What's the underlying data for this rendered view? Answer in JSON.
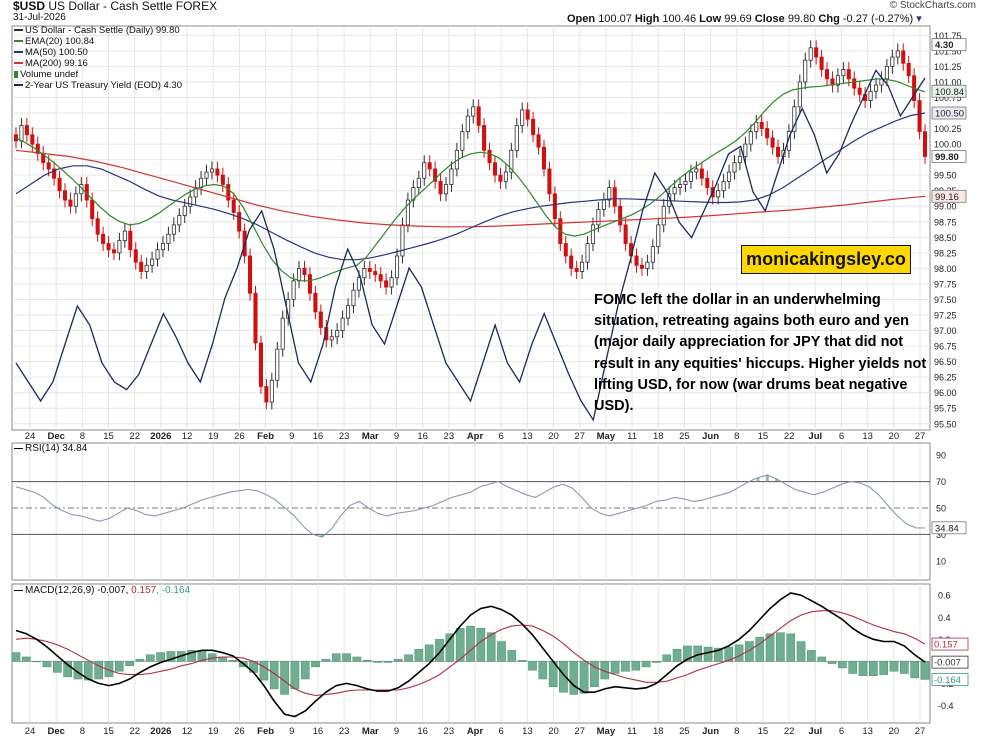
{
  "header": {
    "symbol": "$USD",
    "name": "US Dollar - Cash Settle",
    "exchange": "FOREX",
    "date": "31-Jul-2026",
    "source": "© StockCharts.com",
    "ohlc": {
      "open_label": "Open",
      "open": "100.07",
      "high_label": "High",
      "high": "100.46",
      "low_label": "Low",
      "low": "99.69",
      "close_label": "Close",
      "close": "99.80",
      "chg_label": "Chg",
      "chg": "-0.27 (-0.27%)"
    }
  },
  "legend": {
    "line1": "US Dollar - Cash Settle (Daily) 99.80",
    "line2": "EMA(20) 100.84",
    "line3": "MA(50) 100.50",
    "line4": "MA(200) 99.16",
    "line5": "Volume undef",
    "line6": "2-Year US Treasury Yield (EOD) 4.30"
  },
  "colors": {
    "up": "#2e2e2e",
    "down": "#d01010",
    "ema20": "#2a8a2a",
    "ma50": "#2a3580",
    "ma200": "#d23434",
    "yield": "#1a2a5a",
    "macd": "#000000",
    "signal": "#b03040",
    "hist": "#6fae90",
    "grid": "#e6e6e6",
    "frame": "#888888"
  },
  "watermark": "monicakingsley.co",
  "annotation": "FOMC left the dollar in an underwhelming situation, retreating agains both euro and yen (major daily appreciation for JPY that did not result in any equities' hiccups. Higher yields not lifting USD, for now (war drums beat negative USD).",
  "rsi_label": "RSI(14) 34.84",
  "macd_label": {
    "text": "MACD(12,26,9) -0.007, ",
    "signal": "0.157",
    "hist": ", -0.164"
  },
  "chart_data": [
    {
      "type": "candlestick",
      "title": "$USD US Dollar - Cash Settle FOREX",
      "x_tick_labels": [
        "24",
        "Dec",
        "8",
        "15",
        "22",
        "2026",
        "12",
        "19",
        "26",
        "Feb",
        "9",
        "16",
        "23",
        "Mar",
        "9",
        "16",
        "23",
        "Apr",
        "6",
        "13",
        "20",
        "27",
        "May",
        "11",
        "18",
        "25",
        "Jun",
        "8",
        "15",
        "22",
        "Jul",
        "6",
        "13",
        "20",
        "27"
      ],
      "y_ticks": [
        95.5,
        95.75,
        96.0,
        96.25,
        96.5,
        96.75,
        97.0,
        97.25,
        97.5,
        97.75,
        98.0,
        98.25,
        98.5,
        98.75,
        99.0,
        99.25,
        99.5,
        99.75,
        100.0,
        100.25,
        100.5,
        100.75,
        101.0,
        101.25,
        101.5,
        101.75
      ],
      "ylim": [
        95.4,
        101.9
      ],
      "last_values": {
        "yield": "4.30",
        "ema20": "100.84",
        "ma50": "100.50",
        "ma200": "99.16",
        "close": "99.80"
      },
      "close": [
        100.05,
        100.3,
        100.15,
        100.0,
        99.85,
        99.7,
        99.6,
        99.45,
        99.25,
        99.1,
        99.0,
        99.2,
        99.35,
        99.1,
        98.8,
        98.55,
        98.4,
        98.3,
        98.25,
        98.45,
        98.6,
        98.3,
        98.1,
        97.95,
        98.05,
        98.15,
        98.3,
        98.4,
        98.55,
        98.7,
        98.85,
        99.0,
        99.15,
        99.3,
        99.45,
        99.55,
        99.6,
        99.5,
        99.35,
        99.1,
        98.9,
        98.6,
        98.2,
        97.6,
        96.8,
        96.1,
        95.85,
        96.2,
        96.7,
        97.2,
        97.5,
        97.8,
        98.0,
        97.9,
        97.6,
        97.3,
        97.05,
        96.85,
        96.9,
        97.0,
        97.2,
        97.4,
        97.65,
        97.85,
        98.0,
        97.95,
        97.9,
        97.8,
        97.7,
        97.85,
        98.2,
        98.7,
        99.1,
        99.3,
        99.45,
        99.7,
        99.6,
        99.4,
        99.2,
        99.35,
        99.6,
        99.9,
        100.2,
        100.45,
        100.6,
        100.3,
        99.9,
        99.7,
        99.5,
        99.4,
        99.55,
        99.9,
        100.3,
        100.55,
        100.4,
        100.15,
        99.95,
        99.6,
        99.2,
        98.8,
        98.4,
        98.2,
        98.0,
        97.95,
        98.1,
        98.4,
        98.7,
        98.95,
        99.1,
        99.3,
        99.0,
        98.7,
        98.4,
        98.2,
        98.05,
        98.0,
        98.1,
        98.35,
        98.7,
        99.0,
        99.2,
        99.3,
        99.35,
        99.4,
        99.55,
        99.6,
        99.45,
        99.3,
        99.15,
        99.25,
        99.4,
        99.55,
        99.7,
        99.8,
        100.0,
        100.2,
        100.35,
        100.25,
        100.1,
        99.95,
        99.8,
        99.9,
        100.2,
        100.6,
        101.0,
        101.35,
        101.55,
        101.4,
        101.2,
        101.05,
        100.95,
        101.1,
        101.2,
        101.05,
        100.9,
        100.8,
        100.7,
        100.85,
        100.95,
        101.05,
        101.25,
        101.4,
        101.5,
        101.3,
        101.1,
        100.7,
        100.2,
        99.8
      ],
      "ema20": [
        100.1,
        100.02,
        99.93,
        99.82,
        99.7,
        99.57,
        99.43,
        99.28,
        99.12,
        98.97,
        98.84,
        98.75,
        98.7,
        98.72,
        98.79,
        98.88,
        98.99,
        99.1,
        99.2,
        99.28,
        99.33,
        99.35,
        99.32,
        99.2,
        98.98,
        98.7,
        98.4,
        98.15,
        97.97,
        97.85,
        97.8,
        97.8,
        97.84,
        97.9,
        97.96,
        98.01,
        98.05,
        98.18,
        98.38,
        98.58,
        98.78,
        98.96,
        99.12,
        99.26,
        99.4,
        99.55,
        99.68,
        99.78,
        99.84,
        99.87,
        99.85,
        99.78,
        99.65,
        99.48,
        99.28,
        99.06,
        98.84,
        98.66,
        98.55,
        98.52,
        98.55,
        98.62,
        98.68,
        98.74,
        98.8,
        98.86,
        98.94,
        99.04,
        99.16,
        99.3,
        99.44,
        99.56,
        99.66,
        99.76,
        99.86,
        99.95,
        100.05,
        100.18,
        100.34,
        100.52,
        100.68,
        100.8,
        100.87,
        100.9,
        100.92,
        100.93,
        100.95,
        100.97,
        100.99,
        101.01,
        101.03,
        101.05,
        101.04,
        101.01,
        100.95,
        100.89,
        100.84
      ],
      "ma50": [
        99.2,
        99.35,
        99.5,
        99.6,
        99.65,
        99.65,
        99.6,
        99.5,
        99.4,
        99.28,
        99.17,
        99.1,
        99.05,
        99.0,
        98.95,
        98.88,
        98.8,
        98.7,
        98.58,
        98.46,
        98.35,
        98.25,
        98.18,
        98.14,
        98.14,
        98.17,
        98.22,
        98.28,
        98.34,
        98.4,
        98.47,
        98.55,
        98.65,
        98.75,
        98.84,
        98.91,
        98.96,
        99.0,
        99.03,
        99.06,
        99.08,
        99.1,
        99.12,
        99.12,
        99.11,
        99.1,
        99.09,
        99.08,
        99.07,
        99.06,
        99.06,
        99.07,
        99.1,
        99.18,
        99.3,
        99.45,
        99.6,
        99.76,
        99.9,
        100.05,
        100.18,
        100.28,
        100.38,
        100.46,
        100.5
      ],
      "ma200": [
        99.9,
        99.85,
        99.8,
        99.72,
        99.62,
        99.5,
        99.38,
        99.26,
        99.14,
        99.02,
        98.92,
        98.84,
        98.78,
        98.73,
        98.7,
        98.68,
        98.67,
        98.67,
        98.68,
        98.7,
        98.72,
        98.74,
        98.76,
        98.78,
        98.8,
        98.82,
        98.85,
        98.88,
        98.91,
        98.94,
        98.98,
        99.02,
        99.07,
        99.12,
        99.16
      ],
      "yield_series_y_range": [
        3.4,
        4.4
      ],
      "yield": [
        3.55,
        3.5,
        3.45,
        3.5,
        3.6,
        3.7,
        3.65,
        3.55,
        3.5,
        3.48,
        3.52,
        3.6,
        3.68,
        3.62,
        3.55,
        3.5,
        3.6,
        3.72,
        3.8,
        3.9,
        3.95,
        3.85,
        3.7,
        3.55,
        3.5,
        3.6,
        3.75,
        3.85,
        3.78,
        3.65,
        3.6,
        3.7,
        3.8,
        3.75,
        3.65,
        3.55,
        3.5,
        3.45,
        3.55,
        3.65,
        3.55,
        3.5,
        3.6,
        3.68,
        3.6,
        3.52,
        3.45,
        3.4,
        3.55,
        3.7,
        3.82,
        3.95,
        4.05,
        4.0,
        3.92,
        3.88,
        3.95,
        4.02,
        4.1,
        4.12,
        4.0,
        3.95,
        4.05,
        4.15,
        4.22,
        4.15,
        4.05,
        4.1,
        4.18,
        4.25,
        4.32,
        4.28,
        4.2,
        4.25,
        4.3
      ]
    },
    {
      "type": "line",
      "title": "RSI(14) 34.84",
      "y_ticks": [
        10,
        30,
        50,
        70,
        90
      ],
      "ylim": [
        0,
        100
      ],
      "overbought": 70,
      "oversold": 30,
      "centerline": 50,
      "last_value": "34.84",
      "values": [
        66,
        64,
        62,
        58,
        52,
        48,
        45,
        44,
        42,
        40,
        42,
        46,
        50,
        48,
        45,
        44,
        46,
        48,
        50,
        53,
        56,
        58,
        60,
        62,
        63,
        64,
        63,
        60,
        56,
        50,
        44,
        36,
        30,
        28,
        34,
        44,
        52,
        55,
        50,
        46,
        44,
        46,
        47,
        48,
        50,
        52,
        55,
        58,
        60,
        62,
        66,
        68,
        70,
        66,
        63,
        60,
        58,
        62,
        66,
        68,
        65,
        58,
        50,
        46,
        44,
        46,
        48,
        50,
        52,
        55,
        56,
        58,
        57,
        55,
        56,
        58,
        60,
        62,
        66,
        70,
        73,
        75,
        72,
        68,
        64,
        62,
        60,
        62,
        65,
        68,
        70,
        69,
        66,
        60,
        52,
        44,
        38,
        35,
        34.84
      ]
    },
    {
      "type": "line",
      "title": "MACD(12,26,9)",
      "y_ticks": [
        -0.4,
        -0.2,
        0.0,
        0.2,
        0.4,
        0.6
      ],
      "ylim": [
        -0.55,
        0.72
      ],
      "last_values": {
        "macd": "-0.007",
        "signal": "0.157",
        "histogram": "-0.164"
      },
      "macd": [
        0.28,
        0.25,
        0.2,
        0.13,
        0.05,
        -0.03,
        -0.1,
        -0.16,
        -0.2,
        -0.22,
        -0.2,
        -0.16,
        -0.1,
        -0.05,
        -0.01,
        0.02,
        0.05,
        0.08,
        0.1,
        0.1,
        0.08,
        0.05,
        -0.02,
        -0.1,
        -0.22,
        -0.36,
        -0.48,
        -0.5,
        -0.45,
        -0.36,
        -0.28,
        -0.22,
        -0.2,
        -0.22,
        -0.25,
        -0.27,
        -0.27,
        -0.24,
        -0.18,
        -0.1,
        -0.02,
        0.08,
        0.2,
        0.32,
        0.42,
        0.48,
        0.5,
        0.47,
        0.42,
        0.34,
        0.24,
        0.12,
        0.0,
        -0.12,
        -0.22,
        -0.28,
        -0.28,
        -0.25,
        -0.23,
        -0.24,
        -0.25,
        -0.24,
        -0.2,
        -0.12,
        -0.04,
        0.02,
        0.06,
        0.08,
        0.1,
        0.14,
        0.2,
        0.28,
        0.38,
        0.48,
        0.56,
        0.62,
        0.6,
        0.55,
        0.5,
        0.44,
        0.38,
        0.3,
        0.24,
        0.2,
        0.18,
        0.18,
        0.14,
        0.06,
        -0.007
      ],
      "signal": [
        0.2,
        0.21,
        0.2,
        0.18,
        0.15,
        0.11,
        0.06,
        0.01,
        -0.04,
        -0.08,
        -0.11,
        -0.12,
        -0.12,
        -0.11,
        -0.09,
        -0.07,
        -0.04,
        -0.02,
        0.01,
        0.03,
        0.04,
        0.04,
        0.03,
        0.0,
        -0.05,
        -0.11,
        -0.18,
        -0.25,
        -0.29,
        -0.31,
        -0.3,
        -0.29,
        -0.27,
        -0.26,
        -0.26,
        -0.26,
        -0.26,
        -0.26,
        -0.24,
        -0.21,
        -0.17,
        -0.12,
        -0.05,
        0.02,
        0.1,
        0.18,
        0.24,
        0.29,
        0.32,
        0.33,
        0.32,
        0.28,
        0.23,
        0.16,
        0.08,
        0.01,
        -0.05,
        -0.09,
        -0.12,
        -0.15,
        -0.17,
        -0.19,
        -0.19,
        -0.18,
        -0.15,
        -0.12,
        -0.08,
        -0.05,
        -0.02,
        0.01,
        0.05,
        0.1,
        0.16,
        0.23,
        0.3,
        0.37,
        0.42,
        0.45,
        0.46,
        0.46,
        0.44,
        0.41,
        0.37,
        0.33,
        0.3,
        0.27,
        0.25,
        0.21,
        0.157
      ]
    }
  ]
}
